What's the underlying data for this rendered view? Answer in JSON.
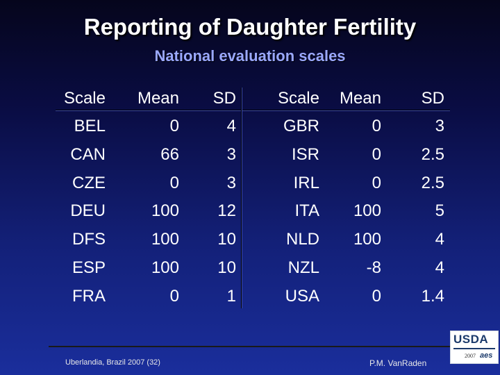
{
  "title": "Reporting of Daughter Fertility",
  "subtitle": "National evaluation scales",
  "table_left": {
    "headers": [
      "Scale",
      "Mean",
      "SD"
    ],
    "rows": [
      [
        "BEL",
        "0",
        "4"
      ],
      [
        "CAN",
        "66",
        "3"
      ],
      [
        "CZE",
        "0",
        "3"
      ],
      [
        "DEU",
        "100",
        "12"
      ],
      [
        "DFS",
        "100",
        "10"
      ],
      [
        "ESP",
        "100",
        "10"
      ],
      [
        "FRA",
        "0",
        "1"
      ]
    ]
  },
  "table_right": {
    "headers": [
      "Scale",
      "Mean",
      "SD"
    ],
    "rows": [
      [
        "GBR",
        "0",
        "3"
      ],
      [
        "ISR",
        "0",
        "2.5"
      ],
      [
        "IRL",
        "0",
        "2.5"
      ],
      [
        "ITA",
        "100",
        "5"
      ],
      [
        "NLD",
        "100",
        "4"
      ],
      [
        "NZL",
        "-8",
        "4"
      ],
      [
        "USA",
        "0",
        "1.4"
      ]
    ]
  },
  "footer": {
    "left": "Uberlandia, Brazil 2007 (32)",
    "right": "P.M. VanRaden"
  },
  "logo": {
    "text": "USDA",
    "year": "2007",
    "mark": "aes"
  }
}
